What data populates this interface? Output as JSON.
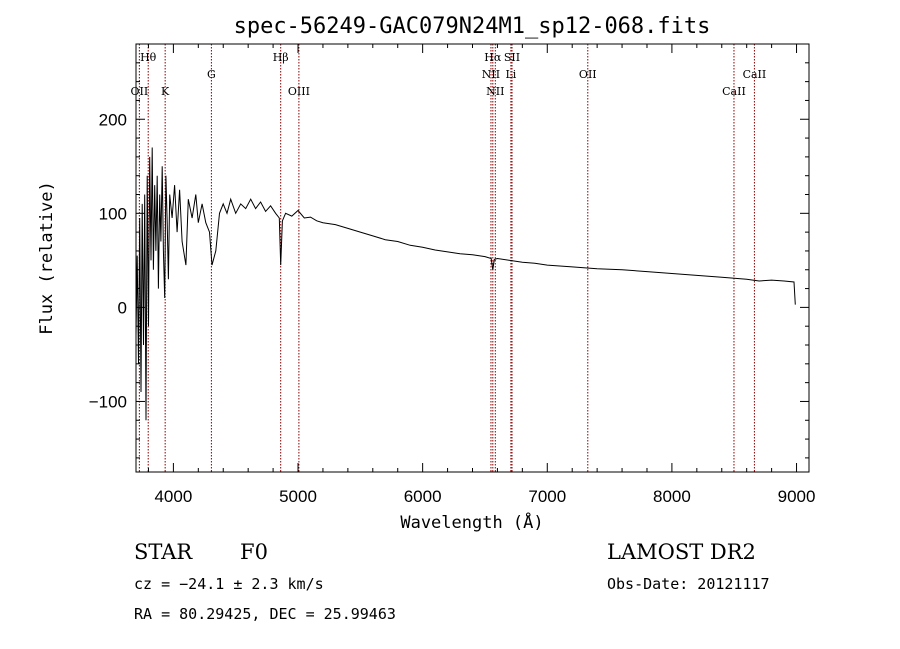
{
  "chart_data": {
    "type": "line",
    "title": "spec-56249-GAC079N24M1_sp12-068.fits",
    "xlabel": "Wavelength (Å)",
    "ylabel": "Flux (relative)",
    "xlim": [
      3700,
      9100
    ],
    "ylim": [
      -175,
      280
    ],
    "xticks": [
      4000,
      5000,
      6000,
      7000,
      8000,
      9000
    ],
    "yticks": [
      -100,
      0,
      100,
      200
    ],
    "grid": false,
    "series": [
      {
        "values": [
          {
            "x": 3700,
            "y": -30
          },
          {
            "x": 3710,
            "y": 55
          },
          {
            "x": 3720,
            "y": -60
          },
          {
            "x": 3730,
            "y": 95
          },
          {
            "x": 3740,
            "y": -90
          },
          {
            "x": 3750,
            "y": 110
          },
          {
            "x": 3760,
            "y": -40
          },
          {
            "x": 3770,
            "y": 120
          },
          {
            "x": 3780,
            "y": -120
          },
          {
            "x": 3790,
            "y": 140
          },
          {
            "x": 3800,
            "y": -20
          },
          {
            "x": 3810,
            "y": 160
          },
          {
            "x": 3820,
            "y": 50
          },
          {
            "x": 3830,
            "y": 170
          },
          {
            "x": 3840,
            "y": 40
          },
          {
            "x": 3850,
            "y": 130
          },
          {
            "x": 3860,
            "y": 60
          },
          {
            "x": 3870,
            "y": 140
          },
          {
            "x": 3880,
            "y": 20
          },
          {
            "x": 3890,
            "y": 120
          },
          {
            "x": 3900,
            "y": 70
          },
          {
            "x": 3910,
            "y": 150
          },
          {
            "x": 3920,
            "y": 60
          },
          {
            "x": 3930,
            "y": 10
          },
          {
            "x": 3940,
            "y": 140
          },
          {
            "x": 3950,
            "y": 90
          },
          {
            "x": 3960,
            "y": 30
          },
          {
            "x": 3970,
            "y": 120
          },
          {
            "x": 3990,
            "y": 95
          },
          {
            "x": 4010,
            "y": 130
          },
          {
            "x": 4030,
            "y": 80
          },
          {
            "x": 4050,
            "y": 125
          },
          {
            "x": 4070,
            "y": 70
          },
          {
            "x": 4100,
            "y": 45
          },
          {
            "x": 4120,
            "y": 115
          },
          {
            "x": 4150,
            "y": 95
          },
          {
            "x": 4180,
            "y": 120
          },
          {
            "x": 4200,
            "y": 90
          },
          {
            "x": 4230,
            "y": 110
          },
          {
            "x": 4260,
            "y": 90
          },
          {
            "x": 4290,
            "y": 80
          },
          {
            "x": 4310,
            "y": 45
          },
          {
            "x": 4340,
            "y": 60
          },
          {
            "x": 4370,
            "y": 100
          },
          {
            "x": 4400,
            "y": 110
          },
          {
            "x": 4430,
            "y": 100
          },
          {
            "x": 4460,
            "y": 115
          },
          {
            "x": 4500,
            "y": 100
          },
          {
            "x": 4540,
            "y": 110
          },
          {
            "x": 4580,
            "y": 105
          },
          {
            "x": 4620,
            "y": 115
          },
          {
            "x": 4660,
            "y": 105
          },
          {
            "x": 4700,
            "y": 112
          },
          {
            "x": 4740,
            "y": 102
          },
          {
            "x": 4780,
            "y": 108
          },
          {
            "x": 4820,
            "y": 100
          },
          {
            "x": 4850,
            "y": 95
          },
          {
            "x": 4861,
            "y": 45
          },
          {
            "x": 4875,
            "y": 92
          },
          {
            "x": 4900,
            "y": 100
          },
          {
            "x": 4950,
            "y": 97
          },
          {
            "x": 5000,
            "y": 103
          },
          {
            "x": 5050,
            "y": 95
          },
          {
            "x": 5100,
            "y": 96
          },
          {
            "x": 5150,
            "y": 92
          },
          {
            "x": 5200,
            "y": 90
          },
          {
            "x": 5300,
            "y": 88
          },
          {
            "x": 5400,
            "y": 84
          },
          {
            "x": 5500,
            "y": 80
          },
          {
            "x": 5600,
            "y": 76
          },
          {
            "x": 5700,
            "y": 72
          },
          {
            "x": 5800,
            "y": 70
          },
          {
            "x": 5900,
            "y": 66
          },
          {
            "x": 6000,
            "y": 64
          },
          {
            "x": 6100,
            "y": 61
          },
          {
            "x": 6200,
            "y": 59
          },
          {
            "x": 6300,
            "y": 57
          },
          {
            "x": 6400,
            "y": 56
          },
          {
            "x": 6500,
            "y": 54
          },
          {
            "x": 6550,
            "y": 52
          },
          {
            "x": 6563,
            "y": 40
          },
          {
            "x": 6575,
            "y": 51
          },
          {
            "x": 6600,
            "y": 52
          },
          {
            "x": 6700,
            "y": 50
          },
          {
            "x": 6800,
            "y": 48
          },
          {
            "x": 6900,
            "y": 47
          },
          {
            "x": 7000,
            "y": 45
          },
          {
            "x": 7200,
            "y": 43
          },
          {
            "x": 7400,
            "y": 41
          },
          {
            "x": 7600,
            "y": 40
          },
          {
            "x": 7800,
            "y": 38
          },
          {
            "x": 8000,
            "y": 36
          },
          {
            "x": 8200,
            "y": 34
          },
          {
            "x": 8400,
            "y": 32
          },
          {
            "x": 8600,
            "y": 30
          },
          {
            "x": 8700,
            "y": 28
          },
          {
            "x": 8800,
            "y": 29
          },
          {
            "x": 8900,
            "y": 28
          },
          {
            "x": 8980,
            "y": 27
          },
          {
            "x": 8990,
            "y": 3
          }
        ]
      }
    ],
    "line_markers": [
      {
        "label": "OII",
        "x": 3727,
        "row": 3
      },
      {
        "label": "Hθ",
        "x": 3798,
        "row": 1
      },
      {
        "label": "K",
        "x": 3934,
        "row": 3
      },
      {
        "label": "G",
        "x": 4305,
        "row": 2
      },
      {
        "label": "Hβ",
        "x": 4861,
        "row": 1
      },
      {
        "label": "OIII",
        "x": 5007,
        "row": 3
      },
      {
        "label": "NII",
        "x": 6548,
        "row": 2
      },
      {
        "label": "Hα",
        "x": 6563,
        "row": 1
      },
      {
        "label": "NII",
        "x": 6583,
        "row": 3
      },
      {
        "label": "Li",
        "x": 6708,
        "row": 2
      },
      {
        "label": "SII",
        "x": 6717,
        "row": 1
      },
      {
        "label": "OII",
        "x": 7325,
        "row": 2
      },
      {
        "label": "CaII",
        "x": 8498,
        "row": 3
      },
      {
        "label": "CaII",
        "x": 8662,
        "row": 2
      }
    ],
    "line_color": "#000000",
    "marker_color": "#8b0000"
  },
  "info": {
    "class": "STAR",
    "subclass": "F0",
    "survey": "LAMOST DR2",
    "cz": "cz = −24.1 ± 2.3 km/s",
    "obs_date": "Obs-Date: 20121117",
    "coords": "RA =  80.29425, DEC =  25.99463"
  }
}
